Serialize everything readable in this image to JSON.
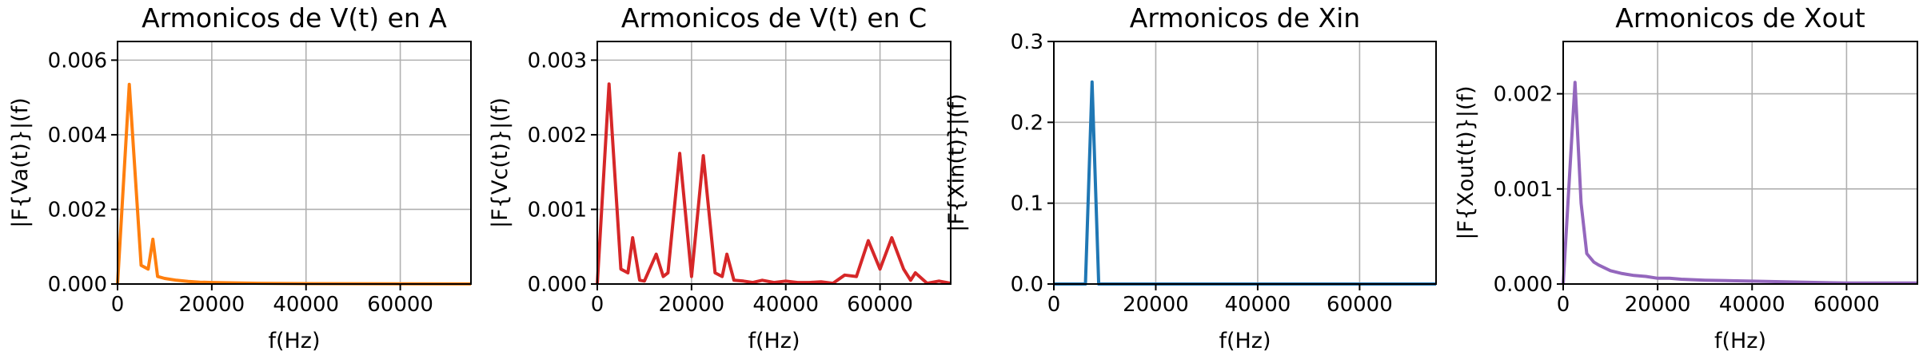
{
  "chart_data": [
    {
      "type": "line",
      "title": "Armonicos de V(t) en A",
      "xlabel": "f(Hz)",
      "ylabel": "|F{Va(t)}|(f)",
      "xlim": [
        0,
        75000
      ],
      "ylim": [
        0,
        0.0065
      ],
      "xticks": [
        0,
        20000,
        40000,
        60000
      ],
      "xtick_labels": [
        "0",
        "20000",
        "40000",
        "60000"
      ],
      "yticks": [
        0,
        0.002,
        0.004,
        0.006
      ],
      "ytick_labels": [
        "0.000",
        "0.002",
        "0.004",
        "0.006"
      ],
      "grid": true,
      "color": "#ff7f0e",
      "series": [
        {
          "x": [
            0,
            2500,
            5000,
            6500,
            7500,
            8500,
            10000,
            12500,
            15000,
            17500,
            20000,
            25000,
            30000,
            40000,
            50000,
            60000,
            75000
          ],
          "values": [
            0.0,
            0.00535,
            0.0005,
            0.0004,
            0.0012,
            0.0002,
            0.00015,
            0.0001,
            7e-05,
            5e-05,
            4e-05,
            3e-05,
            2e-05,
            1e-05,
            8e-06,
            5e-06,
            3e-06
          ]
        }
      ]
    },
    {
      "type": "line",
      "title": "Armonicos de V(t) en C",
      "xlabel": "f(Hz)",
      "ylabel": "|F{Vc(t)}|(f)",
      "xlim": [
        0,
        75000
      ],
      "ylim": [
        0,
        0.00325
      ],
      "xticks": [
        0,
        20000,
        40000,
        60000
      ],
      "xtick_labels": [
        "0",
        "20000",
        "40000",
        "60000"
      ],
      "yticks": [
        0,
        0.001,
        0.002,
        0.003
      ],
      "ytick_labels": [
        "0.000",
        "0.001",
        "0.002",
        "0.003"
      ],
      "grid": true,
      "color": "#d62728",
      "series": [
        {
          "x": [
            0,
            2500,
            5000,
            6500,
            7500,
            9000,
            10000,
            12500,
            14000,
            15000,
            17500,
            20000,
            22500,
            25000,
            26500,
            27500,
            29000,
            31000,
            33000,
            35000,
            37500,
            40000,
            42500,
            45000,
            47500,
            50000,
            52500,
            55000,
            57500,
            60000,
            62500,
            65000,
            66500,
            67500,
            70000,
            72500,
            75000
          ],
          "values": [
            0.0,
            0.00268,
            0.0002,
            0.00015,
            0.00062,
            5e-05,
            4e-05,
            0.0004,
            0.0001,
            0.00015,
            0.00175,
            0.0001,
            0.00172,
            0.00015,
            0.0001,
            0.0004,
            5e-05,
            4e-05,
            2e-05,
            5e-05,
            2e-05,
            4e-05,
            2e-05,
            2e-05,
            3e-05,
            1e-05,
            0.00012,
            0.0001,
            0.00058,
            0.0002,
            0.00062,
            0.0002,
            5e-05,
            0.00015,
            1e-05,
            4e-05,
            1e-05
          ]
        }
      ]
    },
    {
      "type": "line",
      "title": "Armonicos de Xin",
      "xlabel": "f(Hz)",
      "ylabel": "|F{Xin(t)}|(f)",
      "xlim": [
        0,
        75000
      ],
      "ylim": [
        0,
        0.3
      ],
      "xticks": [
        0,
        20000,
        40000,
        60000
      ],
      "xtick_labels": [
        "0",
        "20000",
        "40000",
        "60000"
      ],
      "yticks": [
        0,
        0.1,
        0.2,
        0.3
      ],
      "ytick_labels": [
        "0.0",
        "0.1",
        "0.2",
        "0.3"
      ],
      "grid": true,
      "color": "#1f77b4",
      "series": [
        {
          "x": [
            0,
            5000,
            6200,
            7500,
            8800,
            10000,
            20000,
            40000,
            60000,
            75000
          ],
          "values": [
            0.0,
            0.0,
            0.0,
            0.25,
            0.0,
            0.0,
            0.0,
            0.0,
            0.0,
            0.0
          ]
        }
      ]
    },
    {
      "type": "line",
      "title": "Armonicos de Xout",
      "xlabel": "f(Hz)",
      "ylabel": "|F{Xout(t)}|(f)",
      "xlim": [
        0,
        75000
      ],
      "ylim": [
        0,
        0.00255
      ],
      "xticks": [
        0,
        20000,
        40000,
        60000
      ],
      "xtick_labels": [
        "0",
        "20000",
        "40000",
        "60000"
      ],
      "yticks": [
        0,
        0.001,
        0.002
      ],
      "ytick_labels": [
        "0.000",
        "0.001",
        "0.002"
      ],
      "grid": true,
      "color": "#9467bd",
      "series": [
        {
          "x": [
            0,
            2500,
            3800,
            5000,
            6500,
            7500,
            10000,
            12500,
            15000,
            17500,
            20000,
            22500,
            25000,
            30000,
            40000,
            50000,
            60000,
            75000
          ],
          "values": [
            0.0,
            0.00212,
            0.00085,
            0.00032,
            0.00023,
            0.0002,
            0.00014,
            0.00011,
            9e-05,
            8e-05,
            6e-05,
            6e-05,
            5e-05,
            4e-05,
            3e-05,
            2e-05,
            1e-05,
            1e-05
          ]
        }
      ]
    }
  ]
}
